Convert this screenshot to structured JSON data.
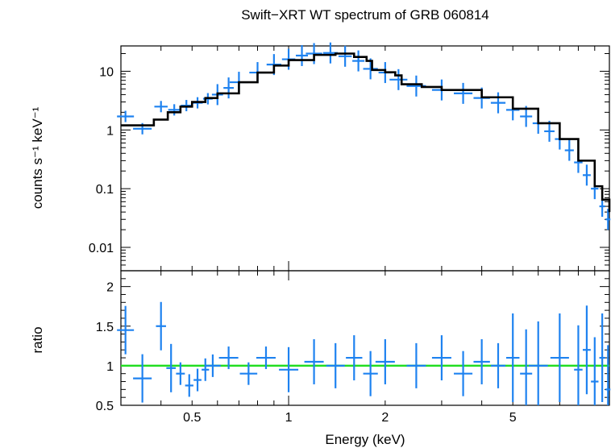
{
  "chart_data": [
    {
      "type": "scatter",
      "title": "Swift−XRT WT spectrum of GRB 060814",
      "xlabel": "Energy (keV)",
      "ylabel": "counts s⁻¹ keV⁻¹",
      "x_scale": "log",
      "y_scale": "log",
      "xlim": [
        0.3,
        10
      ],
      "ylim": [
        0.004,
        27
      ],
      "x_ticks": [
        "0.5",
        "1",
        "2",
        "5"
      ],
      "y_ticks": [
        "0.01",
        "0.1",
        "1",
        "10"
      ],
      "series": [
        {
          "style": "data crosses (blue)",
          "points": [
            {
              "x": 0.31,
              "y": 1.7
            },
            {
              "x": 0.35,
              "y": 1.05
            },
            {
              "x": 0.4,
              "y": 2.5
            },
            {
              "x": 0.44,
              "y": 2.2
            },
            {
              "x": 0.48,
              "y": 2.6
            },
            {
              "x": 0.52,
              "y": 2.9
            },
            {
              "x": 0.56,
              "y": 3.4
            },
            {
              "x": 0.6,
              "y": 4.0
            },
            {
              "x": 0.65,
              "y": 5.2
            },
            {
              "x": 0.7,
              "y": 6.5
            },
            {
              "x": 0.8,
              "y": 9.5
            },
            {
              "x": 0.9,
              "y": 13
            },
            {
              "x": 1.0,
              "y": 16
            },
            {
              "x": 1.1,
              "y": 18.5
            },
            {
              "x": 1.2,
              "y": 20
            },
            {
              "x": 1.35,
              "y": 20.5
            },
            {
              "x": 1.5,
              "y": 18
            },
            {
              "x": 1.65,
              "y": 15
            },
            {
              "x": 1.8,
              "y": 11
            },
            {
              "x": 2.0,
              "y": 9.5
            },
            {
              "x": 2.2,
              "y": 7.2
            },
            {
              "x": 2.5,
              "y": 5.6
            },
            {
              "x": 3.0,
              "y": 4.8
            },
            {
              "x": 3.5,
              "y": 4.2
            },
            {
              "x": 4.0,
              "y": 3.5
            },
            {
              "x": 4.5,
              "y": 2.9
            },
            {
              "x": 5.0,
              "y": 2.2
            },
            {
              "x": 5.5,
              "y": 1.7
            },
            {
              "x": 6.0,
              "y": 1.3
            },
            {
              "x": 6.5,
              "y": 0.95
            },
            {
              "x": 7.0,
              "y": 0.7
            },
            {
              "x": 7.5,
              "y": 0.45
            },
            {
              "x": 8.0,
              "y": 0.28
            },
            {
              "x": 8.5,
              "y": 0.17
            },
            {
              "x": 9.0,
              "y": 0.1
            },
            {
              "x": 9.5,
              "y": 0.05
            },
            {
              "x": 9.9,
              "y": 0.03
            }
          ]
        },
        {
          "style": "model (black step line)",
          "points": [
            {
              "x": 0.3,
              "y": 1.2
            },
            {
              "x": 0.36,
              "y": 1.2
            },
            {
              "x": 0.38,
              "y": 1.5
            },
            {
              "x": 0.42,
              "y": 2.0
            },
            {
              "x": 0.46,
              "y": 2.5
            },
            {
              "x": 0.5,
              "y": 3.0
            },
            {
              "x": 0.55,
              "y": 3.5
            },
            {
              "x": 0.6,
              "y": 4.2
            },
            {
              "x": 0.7,
              "y": 6.5
            },
            {
              "x": 0.8,
              "y": 9.5
            },
            {
              "x": 0.9,
              "y": 12.5
            },
            {
              "x": 1.0,
              "y": 15.5
            },
            {
              "x": 1.2,
              "y": 19
            },
            {
              "x": 1.4,
              "y": 20
            },
            {
              "x": 1.6,
              "y": 17.5
            },
            {
              "x": 1.75,
              "y": 15
            },
            {
              "x": 1.82,
              "y": 10.5
            },
            {
              "x": 2.0,
              "y": 9.6
            },
            {
              "x": 2.15,
              "y": 8.5
            },
            {
              "x": 2.25,
              "y": 6.0
            },
            {
              "x": 2.6,
              "y": 5.4
            },
            {
              "x": 3.0,
              "y": 4.8
            },
            {
              "x": 4.0,
              "y": 3.6
            },
            {
              "x": 5.0,
              "y": 2.3
            },
            {
              "x": 6.0,
              "y": 1.3
            },
            {
              "x": 7.0,
              "y": 0.7
            },
            {
              "x": 8.0,
              "y": 0.3
            },
            {
              "x": 9.0,
              "y": 0.11
            },
            {
              "x": 9.5,
              "y": 0.065
            },
            {
              "x": 10.0,
              "y": 0.04
            }
          ]
        }
      ]
    },
    {
      "type": "scatter",
      "xlabel": "Energy (keV)",
      "ylabel": "ratio",
      "x_scale": "log",
      "y_scale": "linear",
      "xlim": [
        0.3,
        10
      ],
      "ylim": [
        0.5,
        2.2
      ],
      "x_ticks": [
        "0.5",
        "1",
        "2",
        "5"
      ],
      "y_ticks": [
        "0.5",
        "1",
        "1.5",
        "2"
      ],
      "reference_line": {
        "y": 1,
        "color": "#22dd22"
      },
      "series": [
        {
          "style": "data crosses (blue)",
          "points": [
            {
              "x": 0.31,
              "y": 1.45
            },
            {
              "x": 0.35,
              "y": 0.84
            },
            {
              "x": 0.4,
              "y": 1.5
            },
            {
              "x": 0.43,
              "y": 0.97
            },
            {
              "x": 0.46,
              "y": 0.9
            },
            {
              "x": 0.49,
              "y": 0.75
            },
            {
              "x": 0.52,
              "y": 0.82
            },
            {
              "x": 0.55,
              "y": 0.95
            },
            {
              "x": 0.58,
              "y": 1.0
            },
            {
              "x": 0.65,
              "y": 1.1
            },
            {
              "x": 0.75,
              "y": 0.9
            },
            {
              "x": 0.85,
              "y": 1.1
            },
            {
              "x": 1.0,
              "y": 0.95
            },
            {
              "x": 1.2,
              "y": 1.05
            },
            {
              "x": 1.4,
              "y": 1.0
            },
            {
              "x": 1.6,
              "y": 1.1
            },
            {
              "x": 1.8,
              "y": 0.9
            },
            {
              "x": 2.0,
              "y": 1.05
            },
            {
              "x": 2.5,
              "y": 1.0
            },
            {
              "x": 3.0,
              "y": 1.1
            },
            {
              "x": 3.5,
              "y": 0.9
            },
            {
              "x": 4.0,
              "y": 1.05
            },
            {
              "x": 4.5,
              "y": 1.0
            },
            {
              "x": 5.0,
              "y": 1.1
            },
            {
              "x": 5.5,
              "y": 0.9
            },
            {
              "x": 6.0,
              "y": 1.0
            },
            {
              "x": 7.0,
              "y": 1.1
            },
            {
              "x": 8.0,
              "y": 0.95
            },
            {
              "x": 8.5,
              "y": 1.2
            },
            {
              "x": 9.0,
              "y": 0.8
            },
            {
              "x": 9.5,
              "y": 1.1
            },
            {
              "x": 9.9,
              "y": 0.7
            }
          ]
        }
      ]
    }
  ],
  "colors": {
    "data": "#1e82f0",
    "model": "#000000",
    "reference": "#22dd22"
  }
}
